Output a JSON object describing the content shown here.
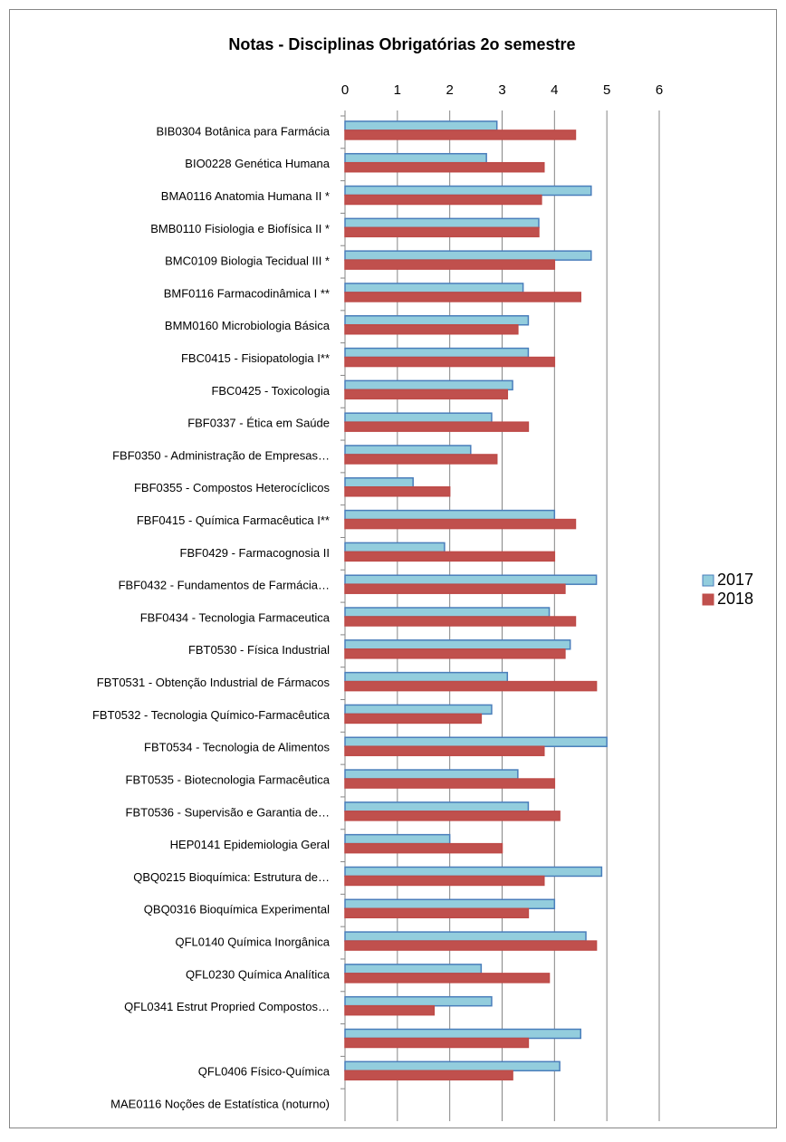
{
  "chart_data": {
    "type": "barh",
    "title": "Notas - Disciplinas Obrigatórias 2o semestre",
    "categories": [
      "BIB0304 Botânica para Farmácia",
      "BIO0228 Genética Humana",
      "BMA0116 Anatomia Humana II *",
      "BMB0110 Fisiologia e Biofísica II *",
      "BMC0109 Biologia Tecidual III *",
      "BMF0116 Farmacodinâmica I **",
      "BMM0160 Microbiologia Básica",
      "FBC0415 - Fisiopatologia I**",
      "FBC0425 - Toxicologia",
      "FBF0337 - Ética em Saúde",
      "FBF0350 - Administração de Empresas…",
      "FBF0355 - Compostos Heterocíclicos",
      "FBF0415 - Química Farmacêutica I**",
      "FBF0429 - Farmacognosia II",
      "FBF0432 - Fundamentos de Farmácia…",
      "FBF0434 - Tecnologia Farmaceutica",
      "FBT0530 - Física Industrial",
      "FBT0531 - Obtenção Industrial de Fármacos",
      "FBT0532 - Tecnologia Químico-Farmacêutica",
      "FBT0534 - Tecnologia de Alimentos",
      "FBT0535 - Biotecnologia Farmacêutica",
      "FBT0536 - Supervisão e Garantia de…",
      "HEP0141 Epidemiologia Geral",
      "QBQ0215 Bioquímica: Estrutura de…",
      "QBQ0316 Bioquímica  Experimental",
      "QFL0140 Química Inorgânica",
      "QFL0230 Química Analítica",
      "QFL0341 Estrut Propried Compostos…",
      null,
      "QFL0406 Físico-Química",
      "MAE0116 Noções de Estatística (noturno)"
    ],
    "series": [
      {
        "name": "2017",
        "color": "#93cddd",
        "edgecolor": "#4a7ebb",
        "values": [
          2.9,
          2.7,
          4.7,
          3.7,
          4.7,
          3.4,
          3.5,
          3.5,
          3.2,
          2.8,
          2.4,
          1.3,
          4.0,
          1.9,
          4.8,
          3.9,
          4.3,
          3.1,
          2.8,
          5.0,
          3.3,
          3.5,
          2.0,
          4.9,
          4.0,
          4.6,
          2.6,
          2.8,
          4.5,
          4.1,
          null
        ]
      },
      {
        "name": "2018",
        "color": "#c0504d",
        "edgecolor": "#be4b48",
        "values": [
          4.4,
          3.8,
          3.75,
          3.7,
          4.0,
          4.5,
          3.3,
          4.0,
          3.1,
          3.5,
          2.9,
          2.0,
          4.4,
          4.0,
          4.2,
          4.4,
          4.2,
          4.8,
          2.6,
          3.8,
          4.0,
          4.1,
          3.0,
          3.8,
          3.5,
          4.8,
          3.9,
          1.7,
          3.5,
          3.2,
          null
        ]
      }
    ],
    "xlim": [
      0,
      6
    ],
    "xticks": [
      0,
      1,
      2,
      3,
      4,
      5,
      6
    ],
    "grid": true,
    "legend": "right"
  }
}
